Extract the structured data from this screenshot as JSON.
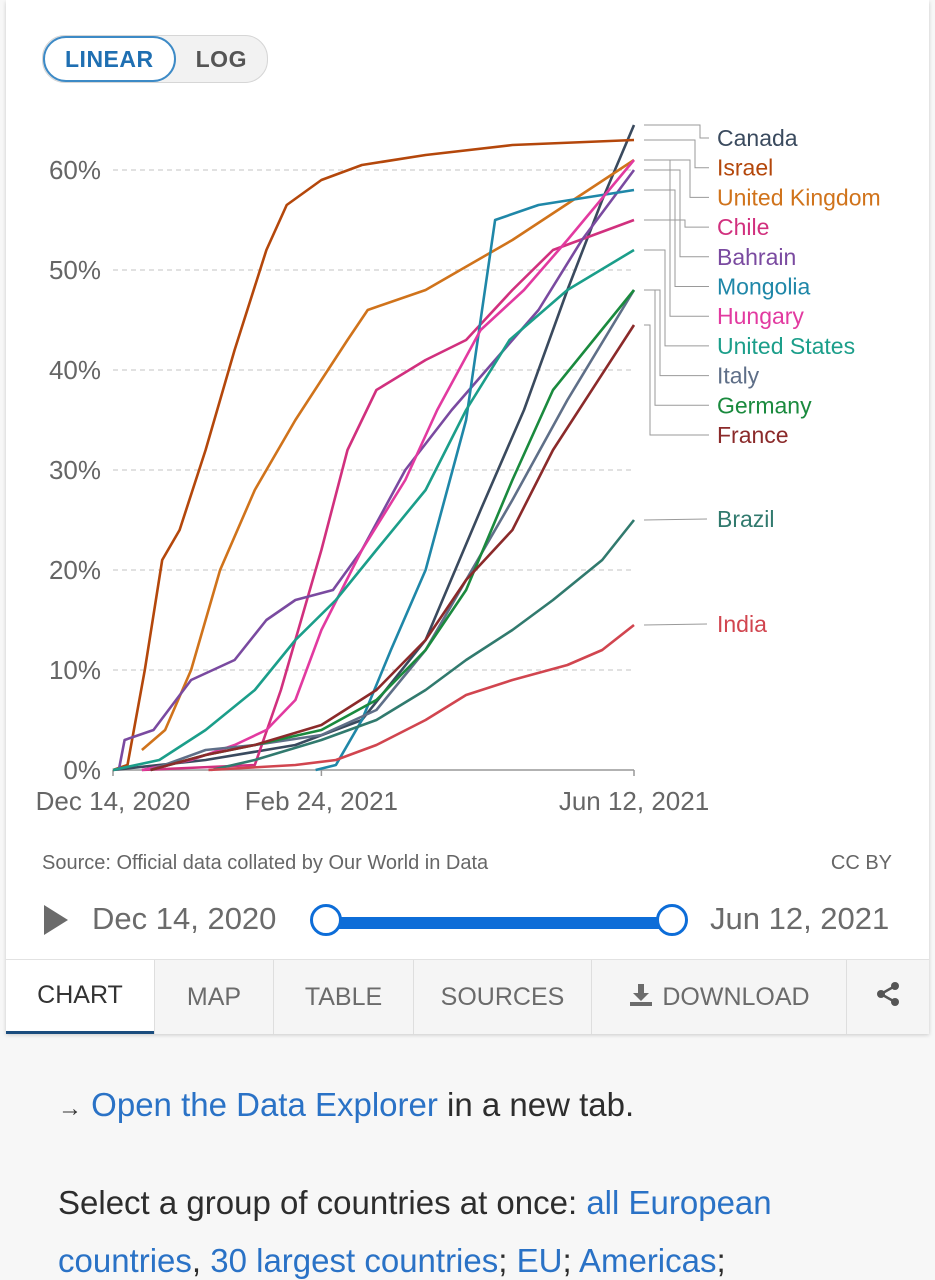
{
  "toggle": {
    "linear_label": "LINEAR",
    "log_label": "LOG"
  },
  "source_text": "Source: Official data collated by Our World in Data",
  "license_text": "CC BY",
  "timeline": {
    "start_label": "Dec 14, 2020",
    "end_label": "Jun 12, 2021"
  },
  "tabs": [
    {
      "label": "CHART",
      "active": true
    },
    {
      "label": "MAP"
    },
    {
      "label": "TABLE"
    },
    {
      "label": "SOURCES"
    },
    {
      "label": "DOWNLOAD",
      "icon": "download-icon"
    },
    {
      "label": "",
      "icon": "share-icon"
    }
  ],
  "explorer": {
    "arrow": "→",
    "link": "Open the Data Explorer",
    "rest": " in a new tab."
  },
  "groups": {
    "intro": "Select a group of countries at once: ",
    "link1": "all European",
    "line2_link1": "countries",
    "sep1": ", ",
    "line2_link2": "30 largest countries",
    "sep2": "; ",
    "line2_link3": "EU",
    "sep3": "; ",
    "line2_link4": "Americas",
    "sep4": ";"
  },
  "chart_data": {
    "type": "line",
    "x_range": [
      "2020-12-14",
      "2021-06-12"
    ],
    "x_ticks": [
      {
        "date": "2020-12-14",
        "label": "Dec 14, 2020"
      },
      {
        "date": "2021-02-24",
        "label": "Feb 24, 2021"
      },
      {
        "date": "2021-06-12",
        "label": "Jun 12, 2021"
      }
    ],
    "ylim": [
      0,
      65
    ],
    "y_ticks": [
      {
        "value": 0,
        "label": "0%"
      },
      {
        "value": 10,
        "label": "10%"
      },
      {
        "value": 20,
        "label": "20%"
      },
      {
        "value": 30,
        "label": "30%"
      },
      {
        "value": 40,
        "label": "40%"
      },
      {
        "value": 50,
        "label": "50%"
      },
      {
        "value": 60,
        "label": "60%"
      }
    ],
    "grid": "horizontal dashed",
    "legend": "right, labels at line ends",
    "series": [
      {
        "name": "Canada",
        "color": "#3a4a5e",
        "points": [
          [
            "2020-12-14",
            0
          ],
          [
            "2021-01-15",
            1
          ],
          [
            "2021-02-15",
            2.5
          ],
          [
            "2021-03-10",
            5
          ],
          [
            "2021-04-01",
            13
          ],
          [
            "2021-04-20",
            26
          ],
          [
            "2021-05-05",
            36
          ],
          [
            "2021-05-20",
            48
          ],
          [
            "2021-06-01",
            57
          ],
          [
            "2021-06-12",
            64.5
          ]
        ]
      },
      {
        "name": "Israel",
        "color": "#b4470b",
        "points": [
          [
            "2020-12-14",
            0
          ],
          [
            "2020-12-19",
            0.5
          ],
          [
            "2020-12-25",
            10
          ],
          [
            "2020-12-31",
            21
          ],
          [
            "2021-01-06",
            24
          ],
          [
            "2021-01-15",
            32
          ],
          [
            "2021-01-25",
            42
          ],
          [
            "2021-02-05",
            52
          ],
          [
            "2021-02-12",
            56.5
          ],
          [
            "2021-02-24",
            59
          ],
          [
            "2021-03-10",
            60.5
          ],
          [
            "2021-04-01",
            61.5
          ],
          [
            "2021-05-01",
            62.5
          ],
          [
            "2021-06-12",
            63
          ]
        ]
      },
      {
        "name": "United Kingdom",
        "color": "#d0731b",
        "points": [
          [
            "2020-12-24",
            2
          ],
          [
            "2021-01-01",
            4
          ],
          [
            "2021-01-10",
            10
          ],
          [
            "2021-01-20",
            20
          ],
          [
            "2021-02-01",
            28
          ],
          [
            "2021-02-15",
            35
          ],
          [
            "2021-02-24",
            39
          ],
          [
            "2021-03-05",
            43
          ],
          [
            "2021-03-12",
            46
          ],
          [
            "2021-04-01",
            48
          ],
          [
            "2021-05-01",
            53
          ],
          [
            "2021-06-12",
            61
          ]
        ]
      },
      {
        "name": "Chile",
        "color": "#d1307e",
        "points": [
          [
            "2020-12-24",
            0
          ],
          [
            "2021-02-01",
            0.5
          ],
          [
            "2021-02-10",
            8
          ],
          [
            "2021-02-24",
            22
          ],
          [
            "2021-03-05",
            32
          ],
          [
            "2021-03-15",
            38
          ],
          [
            "2021-04-01",
            41
          ],
          [
            "2021-04-15",
            43
          ],
          [
            "2021-05-01",
            48
          ],
          [
            "2021-05-15",
            52
          ],
          [
            "2021-06-12",
            55
          ]
        ]
      },
      {
        "name": "Bahrain",
        "color": "#7a4aa0",
        "points": [
          [
            "2020-12-16",
            0
          ],
          [
            "2020-12-18",
            3
          ],
          [
            "2020-12-28",
            4
          ],
          [
            "2021-01-10",
            9
          ],
          [
            "2021-01-25",
            11
          ],
          [
            "2021-02-05",
            15
          ],
          [
            "2021-02-15",
            17
          ],
          [
            "2021-02-28",
            18
          ],
          [
            "2021-03-10",
            22
          ],
          [
            "2021-03-25",
            30
          ],
          [
            "2021-04-10",
            36
          ],
          [
            "2021-04-25",
            41
          ],
          [
            "2021-05-10",
            46
          ],
          [
            "2021-05-25",
            53
          ],
          [
            "2021-06-12",
            60
          ]
        ]
      },
      {
        "name": "Mongolia",
        "color": "#1f87a8",
        "points": [
          [
            "2021-02-22",
            0
          ],
          [
            "2021-03-01",
            0.5
          ],
          [
            "2021-03-10",
            5
          ],
          [
            "2021-03-20",
            12
          ],
          [
            "2021-04-01",
            20
          ],
          [
            "2021-04-15",
            35
          ],
          [
            "2021-04-20",
            45
          ],
          [
            "2021-04-25",
            55
          ],
          [
            "2021-05-10",
            56.5
          ],
          [
            "2021-06-12",
            58
          ]
        ]
      },
      {
        "name": "Hungary",
        "color": "#e23aa0",
        "points": [
          [
            "2020-12-24",
            0
          ],
          [
            "2021-01-10",
            1
          ],
          [
            "2021-01-25",
            2.5
          ],
          [
            "2021-02-05",
            4
          ],
          [
            "2021-02-15",
            7
          ],
          [
            "2021-02-24",
            14
          ],
          [
            "2021-03-10",
            22
          ],
          [
            "2021-03-25",
            29
          ],
          [
            "2021-04-05",
            36
          ],
          [
            "2021-04-20",
            44
          ],
          [
            "2021-05-05",
            48
          ],
          [
            "2021-05-20",
            53
          ],
          [
            "2021-06-12",
            61
          ]
        ]
      },
      {
        "name": "United States",
        "color": "#1b9e8a",
        "points": [
          [
            "2020-12-14",
            0
          ],
          [
            "2020-12-30",
            1
          ],
          [
            "2021-01-15",
            4
          ],
          [
            "2021-02-01",
            8
          ],
          [
            "2021-02-15",
            13
          ],
          [
            "2021-03-01",
            17
          ],
          [
            "2021-03-15",
            22
          ],
          [
            "2021-04-01",
            28
          ],
          [
            "2021-04-15",
            36
          ],
          [
            "2021-04-30",
            43
          ],
          [
            "2021-05-20",
            48
          ],
          [
            "2021-06-12",
            52
          ]
        ]
      },
      {
        "name": "Italy",
        "color": "#5f6f88",
        "points": [
          [
            "2020-12-27",
            0
          ],
          [
            "2021-01-15",
            2
          ],
          [
            "2021-02-01",
            2.5
          ],
          [
            "2021-02-24",
            3.5
          ],
          [
            "2021-03-15",
            6
          ],
          [
            "2021-04-01",
            12
          ],
          [
            "2021-04-15",
            19
          ],
          [
            "2021-05-01",
            27
          ],
          [
            "2021-05-20",
            37
          ],
          [
            "2021-06-12",
            48
          ]
        ]
      },
      {
        "name": "Germany",
        "color": "#1a8a3e",
        "points": [
          [
            "2020-12-27",
            0
          ],
          [
            "2021-01-15",
            1.5
          ],
          [
            "2021-02-01",
            2.5
          ],
          [
            "2021-02-24",
            4
          ],
          [
            "2021-03-15",
            7
          ],
          [
            "2021-04-01",
            12
          ],
          [
            "2021-04-15",
            18
          ],
          [
            "2021-05-01",
            29
          ],
          [
            "2021-05-15",
            38
          ],
          [
            "2021-06-12",
            48
          ]
        ]
      },
      {
        "name": "France",
        "color": "#8b2a2a",
        "points": [
          [
            "2020-12-27",
            0
          ],
          [
            "2021-01-15",
            1.5
          ],
          [
            "2021-02-01",
            2.5
          ],
          [
            "2021-02-24",
            4.5
          ],
          [
            "2021-03-15",
            8
          ],
          [
            "2021-04-01",
            13
          ],
          [
            "2021-04-15",
            19
          ],
          [
            "2021-05-01",
            24
          ],
          [
            "2021-05-15",
            32
          ],
          [
            "2021-06-12",
            44.5
          ]
        ]
      },
      {
        "name": "Brazil",
        "color": "#317a6e",
        "points": [
          [
            "2021-01-17",
            0
          ],
          [
            "2021-02-01",
            1
          ],
          [
            "2021-02-24",
            3
          ],
          [
            "2021-03-15",
            5
          ],
          [
            "2021-04-01",
            8
          ],
          [
            "2021-04-15",
            11
          ],
          [
            "2021-05-01",
            14
          ],
          [
            "2021-05-15",
            17
          ],
          [
            "2021-06-01",
            21
          ],
          [
            "2021-06-12",
            25
          ]
        ]
      },
      {
        "name": "India",
        "color": "#d1454f",
        "points": [
          [
            "2021-01-16",
            0
          ],
          [
            "2021-02-15",
            0.5
          ],
          [
            "2021-03-01",
            1
          ],
          [
            "2021-03-15",
            2.5
          ],
          [
            "2021-04-01",
            5
          ],
          [
            "2021-04-15",
            7.5
          ],
          [
            "2021-05-01",
            9
          ],
          [
            "2021-05-20",
            10.5
          ],
          [
            "2021-06-01",
            12
          ],
          [
            "2021-06-12",
            14.5
          ]
        ]
      }
    ],
    "legend_order": [
      "Canada",
      "Israel",
      "United Kingdom",
      "Chile",
      "Bahrain",
      "Mongolia",
      "Hungary",
      "United States",
      "Italy",
      "Germany",
      "France",
      "Brazil",
      "India"
    ]
  }
}
